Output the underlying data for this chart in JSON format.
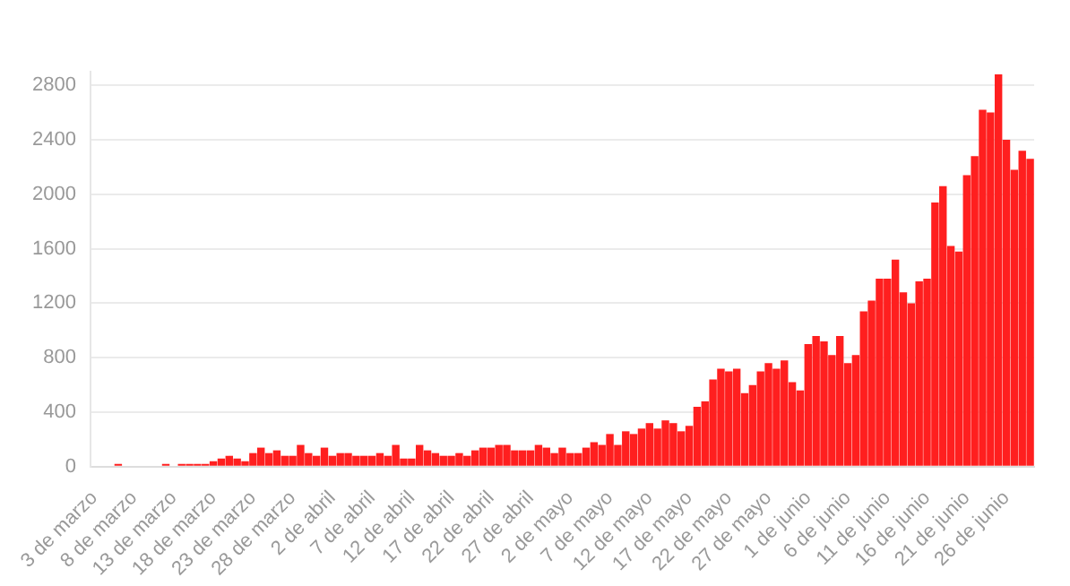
{
  "chart_data": {
    "type": "bar",
    "categories": [
      "3 de marzo",
      null,
      null,
      null,
      null,
      "8 de marzo",
      null,
      null,
      null,
      null,
      "13 de marzo",
      null,
      null,
      null,
      null,
      "18 de marzo",
      null,
      null,
      null,
      null,
      "23 de marzo",
      null,
      null,
      null,
      null,
      "28 de marzo",
      null,
      null,
      null,
      null,
      "2 de abril",
      null,
      null,
      null,
      null,
      "7 de abril",
      null,
      null,
      null,
      null,
      "12 de abril",
      null,
      null,
      null,
      null,
      "17 de abril",
      null,
      null,
      null,
      null,
      "22 de abril",
      null,
      null,
      null,
      null,
      "27 de abril",
      null,
      null,
      null,
      null,
      "2 de mayo",
      null,
      null,
      null,
      null,
      "7 de mayo",
      null,
      null,
      null,
      null,
      "12 de mayo",
      null,
      null,
      null,
      null,
      "17 de mayo",
      null,
      null,
      null,
      null,
      "22 de mayo",
      null,
      null,
      null,
      null,
      "27 de mayo",
      null,
      null,
      null,
      null,
      "1 de junio",
      null,
      null,
      null,
      null,
      "6 de junio",
      null,
      null,
      null,
      null,
      "11 de junio",
      null,
      null,
      null,
      null,
      "16 de junio",
      null,
      null,
      null,
      null,
      "21 de junio",
      null,
      null,
      null,
      null,
      "26 de junio",
      null,
      null,
      null
    ],
    "values": [
      0,
      0,
      0,
      20,
      0,
      0,
      0,
      0,
      0,
      20,
      0,
      20,
      20,
      20,
      20,
      40,
      60,
      80,
      60,
      40,
      100,
      140,
      100,
      120,
      80,
      80,
      160,
      100,
      80,
      140,
      80,
      100,
      100,
      80,
      80,
      80,
      100,
      80,
      160,
      60,
      60,
      160,
      120,
      100,
      80,
      80,
      100,
      80,
      120,
      140,
      140,
      160,
      160,
      120,
      120,
      120,
      160,
      140,
      100,
      140,
      100,
      100,
      140,
      180,
      160,
      240,
      160,
      260,
      240,
      280,
      320,
      280,
      340,
      320,
      260,
      300,
      440,
      480,
      640,
      720,
      700,
      720,
      540,
      600,
      700,
      760,
      720,
      780,
      620,
      560,
      900,
      960,
      920,
      820,
      960,
      760,
      820,
      1140,
      1220,
      1380,
      1380,
      1520,
      1280,
      1200,
      1360,
      1380,
      1940,
      2060,
      1620,
      1580,
      2140,
      2280,
      2620,
      2600,
      2880,
      2400,
      2180,
      2320,
      2260
    ],
    "color": "#ff1f1f",
    "ylim": [
      0,
      2900
    ],
    "yticks": [
      0,
      400,
      800,
      1200,
      1600,
      2000,
      2400,
      2800
    ],
    "grid": "y"
  }
}
